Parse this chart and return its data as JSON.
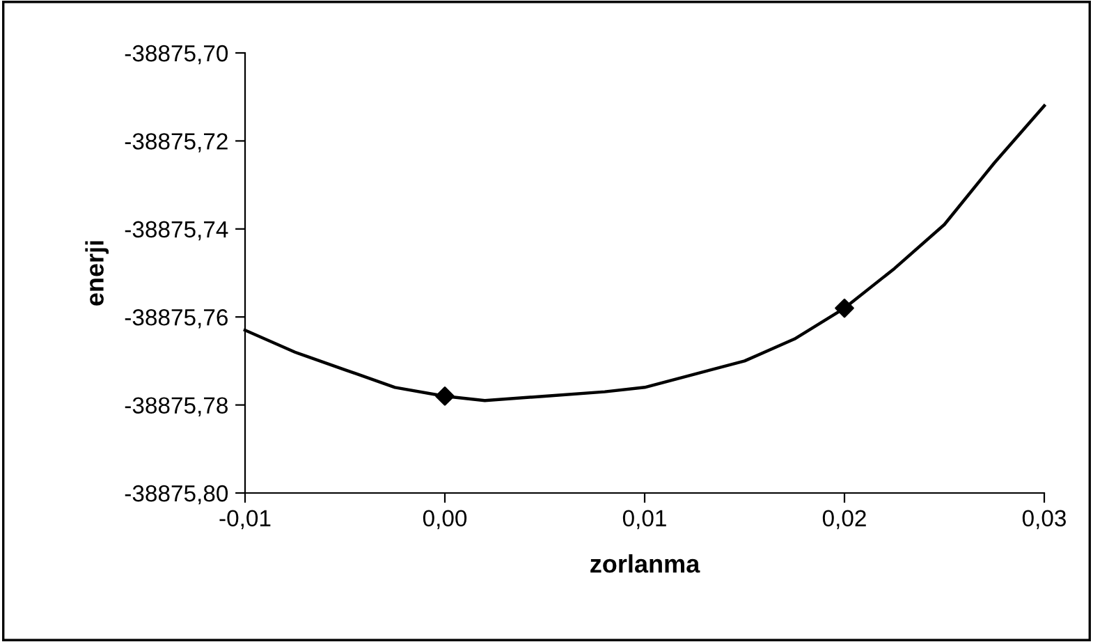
{
  "chart_data": {
    "type": "line",
    "xlabel": "zorlanma",
    "ylabel": "enerji",
    "series": [
      {
        "color": "#000000",
        "marker": "none",
        "x": [
          -0.01,
          -0.0075,
          -0.005,
          -0.0025,
          0,
          0.002,
          0.005,
          0.008,
          0.01,
          0.0125,
          0.015,
          0.0175,
          0.02,
          0.0225,
          0.025,
          0.0275,
          0.03
        ],
        "values": [
          -38875.763,
          -38875.768,
          -38875.772,
          -38875.776,
          -38875.778,
          -38875.779,
          -38875.778,
          -38875.777,
          -38875.776,
          -38875.773,
          -38875.77,
          -38875.765,
          -38875.758,
          -38875.749,
          -38875.739,
          -38875.725,
          -38875.712
        ]
      },
      {
        "type": "scatter",
        "color": "#000000",
        "marker": "diamond",
        "x": [
          0,
          0.02
        ],
        "values": [
          -38875.778,
          -38875.758
        ]
      }
    ],
    "xlim": [
      -0.01,
      0.03
    ],
    "xticks": [
      {
        "value": -0.01,
        "label": "-0,01"
      },
      {
        "value": 0,
        "label": "0,00"
      },
      {
        "value": 0.01,
        "label": "0,01"
      },
      {
        "value": 0.02,
        "label": "0,02"
      },
      {
        "value": 0.03,
        "label": "0,03"
      }
    ],
    "ylim": [
      -38875.8,
      -38875.7
    ],
    "yticks": [
      {
        "value": -38875.8,
        "label": "-38875,80"
      },
      {
        "value": -38875.78,
        "label": "-38875,78"
      },
      {
        "value": -38875.76,
        "label": "-38875,76"
      },
      {
        "value": -38875.74,
        "label": "-38875,74"
      },
      {
        "value": -38875.72,
        "label": "-38875,72"
      },
      {
        "value": -38875.7,
        "label": "-38875,70"
      }
    ],
    "grid": false,
    "legend": false
  }
}
